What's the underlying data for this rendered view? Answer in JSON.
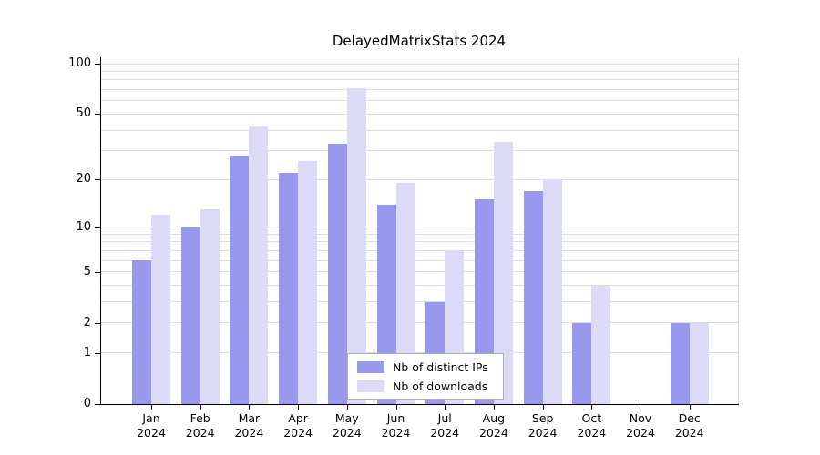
{
  "title": "DelayedMatrixStats 2024",
  "chart_data": {
    "type": "bar",
    "title": "DelayedMatrixStats 2024",
    "categories": [
      "Jan",
      "Feb",
      "Mar",
      "Apr",
      "May",
      "Jun",
      "Jul",
      "Aug",
      "Sep",
      "Oct",
      "Nov",
      "Dec"
    ],
    "year_label": "2024",
    "series": [
      {
        "name": "Nb of distinct IPs",
        "key": "distinct-ips",
        "color": "#9898ef",
        "values": [
          6,
          10,
          28,
          22,
          33,
          14,
          3,
          15,
          17,
          2,
          0,
          2
        ]
      },
      {
        "name": "Nb of downloads",
        "key": "downloads",
        "color": "#dbdbf8",
        "values": [
          12,
          13,
          42,
          26,
          71,
          19,
          7,
          34,
          20,
          4,
          0,
          2
        ]
      }
    ],
    "yticks": [
      0,
      1,
      2,
      5,
      10,
      20,
      50,
      100
    ],
    "grid_values": [
      1,
      2,
      3,
      4,
      5,
      6,
      7,
      8,
      9,
      10,
      20,
      30,
      40,
      50,
      60,
      70,
      80,
      90,
      100
    ],
    "scale": "log10(value+1)",
    "ylim": [
      0,
      100
    ],
    "xlabel": "",
    "ylabel": "",
    "grid": true,
    "legend_position": "bottom-center"
  },
  "colors": {
    "axis": "#000000",
    "grid": "#dcdcdc",
    "background": "#ffffff",
    "legend_border": "#adadad"
  }
}
